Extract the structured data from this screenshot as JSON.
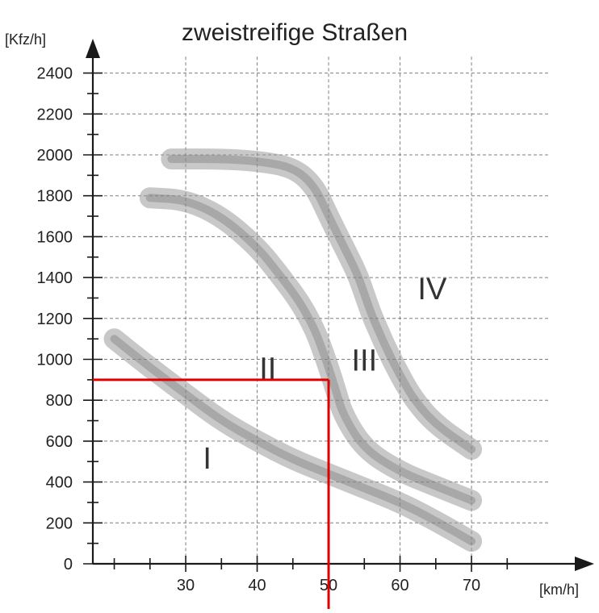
{
  "chart_data": {
    "type": "line",
    "title": "zweistreifige Straßen",
    "ylabel": "[Kfz/h]",
    "xlabel": "[km/h]",
    "ylim": [
      0,
      2500
    ],
    "xlim": [
      17,
      82
    ],
    "y_ticks": [
      0,
      200,
      400,
      600,
      800,
      1000,
      1200,
      1400,
      1600,
      1800,
      2000,
      2200,
      2400
    ],
    "x_ticks": [
      30,
      40,
      50,
      60,
      70
    ],
    "grid": true,
    "colors": {
      "band": "#9a9a9a",
      "marker": "#e00000",
      "axis": "#1a1a1a"
    },
    "series": [
      {
        "x": [
          20,
          25,
          30,
          35,
          40,
          45,
          50,
          55,
          60,
          65,
          70
        ],
        "y": [
          1100,
          960,
          830,
          700,
          600,
          510,
          440,
          370,
          300,
          210,
          110
        ]
      },
      {
        "x": [
          25,
          30,
          35,
          40,
          43,
          46,
          48,
          49,
          50,
          51,
          52,
          55,
          60,
          65,
          70
        ],
        "y": [
          1790,
          1780,
          1700,
          1550,
          1420,
          1280,
          1150,
          1060,
          960,
          850,
          730,
          560,
          450,
          380,
          310
        ]
      },
      {
        "x": [
          28,
          35,
          40,
          45,
          48,
          50,
          52,
          54,
          55,
          56,
          57,
          58,
          60,
          62,
          65,
          70
        ],
        "y": [
          1980,
          1980,
          1970,
          1940,
          1850,
          1700,
          1560,
          1420,
          1320,
          1220,
          1140,
          1060,
          920,
          800,
          680,
          560
        ]
      }
    ],
    "regions": [
      {
        "label": "I",
        "x": 33,
        "y": 520
      },
      {
        "label": "II",
        "x": 41.5,
        "y": 960
      },
      {
        "label": "III",
        "x": 55,
        "y": 1000
      },
      {
        "label": "IV",
        "x": 64.5,
        "y": 1350
      }
    ],
    "marker": {
      "x": 50,
      "y": 900
    }
  }
}
